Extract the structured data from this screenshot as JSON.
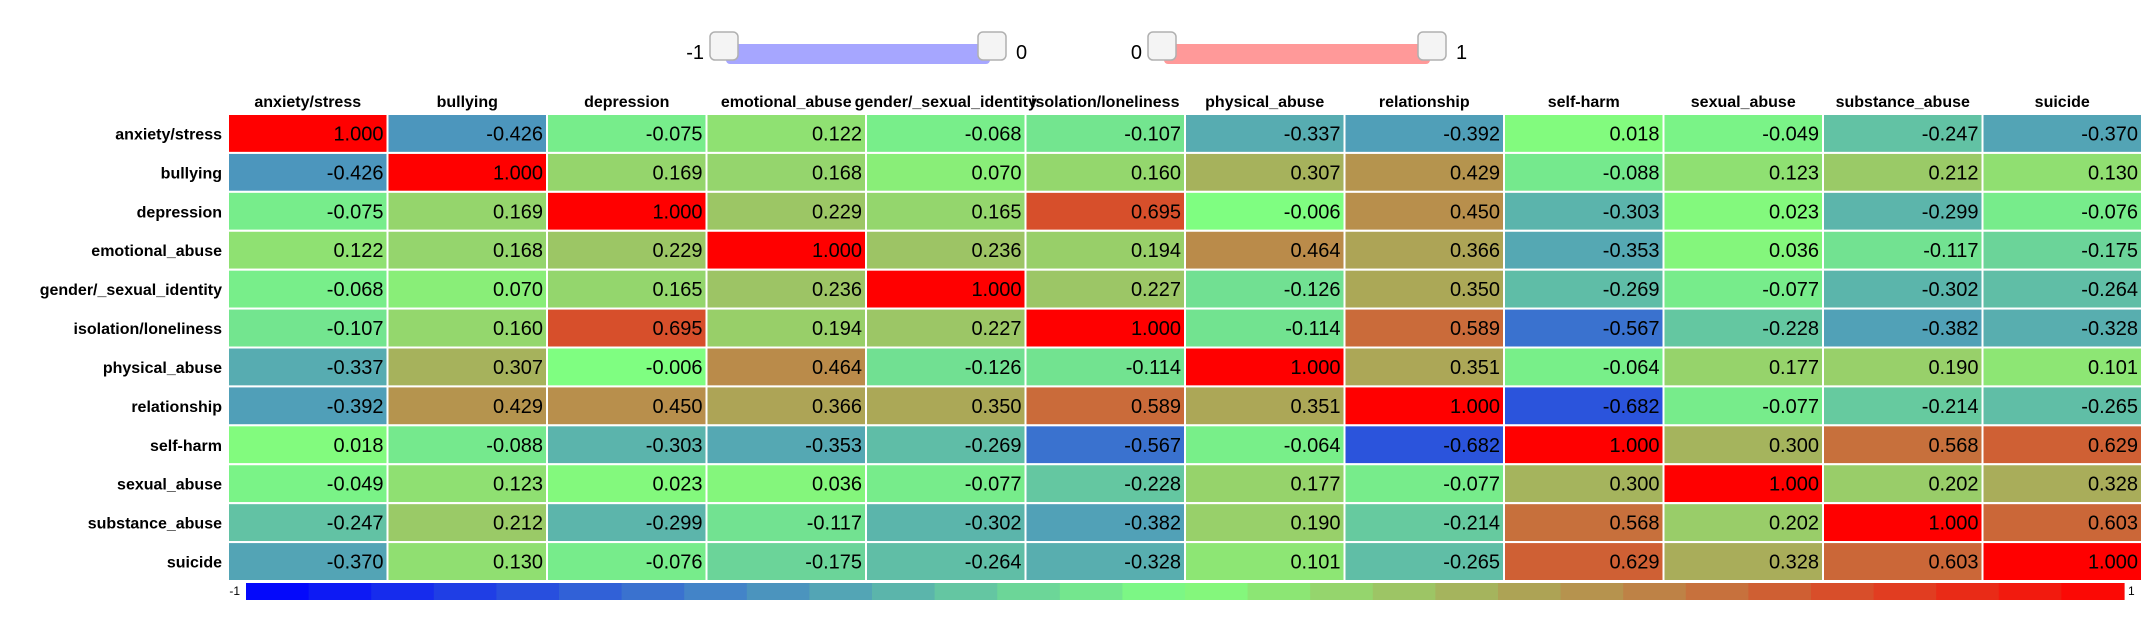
{
  "controls": {
    "negative_range": {
      "min_label": "-1",
      "max_label": "0",
      "track_color": "#a6a6ff"
    },
    "positive_range": {
      "min_label": "0",
      "max_label": "1",
      "track_color": "#ff9999"
    }
  },
  "chart_data": {
    "type": "heatmap",
    "title": "",
    "xlabel": "",
    "ylabel": "",
    "value_range": [
      -1,
      1
    ],
    "x_labels": [
      "anxiety/stress",
      "bullying",
      "depression",
      "emotional_abuse",
      "gender/_sexual_identity",
      "isolation/loneliness",
      "physical_abuse",
      "relationship",
      "self-harm",
      "sexual_abuse",
      "substance_abuse",
      "suicide"
    ],
    "y_labels": [
      "anxiety/stress",
      "bullying",
      "depression",
      "emotional_abuse",
      "gender/_sexual_identity",
      "isolation/loneliness",
      "physical_abuse",
      "relationship",
      "self-harm",
      "sexual_abuse",
      "substance_abuse",
      "suicide"
    ],
    "cell_labels": [
      [
        "1.000",
        "-0.426",
        "-0.075",
        "0.122",
        "-0.068",
        "-0.107",
        "-0.337",
        "-0.392",
        "0.018",
        "-0.049",
        "-0.247",
        "-0.370"
      ],
      [
        "-0.426",
        "1.000",
        "0.169",
        "0.168",
        "0.070",
        "0.160",
        "0.307",
        "0.429",
        "-0.088",
        "0.123",
        "0.212",
        "0.130"
      ],
      [
        "-0.075",
        "0.169",
        "1.000",
        "0.229",
        "0.165",
        "0.695",
        "-0.006",
        "0.450",
        "-0.303",
        "0.023",
        "-0.299",
        "-0.076"
      ],
      [
        "0.122",
        "0.168",
        "0.229",
        "1.000",
        "0.236",
        "0.194",
        "0.464",
        "0.366",
        "-0.353",
        "0.036",
        "-0.117",
        "-0.175"
      ],
      [
        "-0.068",
        "0.070",
        "0.165",
        "0.236",
        "1.000",
        "0.227",
        "-0.126",
        "0.350",
        "-0.269",
        "-0.077",
        "-0.302",
        "-0.264"
      ],
      [
        "-0.107",
        "0.160",
        "0.695",
        "0.194",
        "0.227",
        "1.000",
        "-0.114",
        "0.589",
        "-0.567",
        "-0.228",
        "-0.382",
        "-0.328"
      ],
      [
        "-0.337",
        "0.307",
        "-0.006",
        "0.464",
        "-0.126",
        "-0.114",
        "1.000",
        "0.351",
        "-0.064",
        "0.177",
        "0.190",
        "0.101"
      ],
      [
        "-0.392",
        "0.429",
        "0.450",
        "0.366",
        "0.350",
        "0.589",
        "0.351",
        "1.000",
        "-0.682",
        "-0.077",
        "-0.214",
        "-0.265"
      ],
      [
        "0.018",
        "-0.088",
        "-0.303",
        "-0.353",
        "-0.269",
        "-0.567",
        "-0.064",
        "-0.682",
        "1.000",
        "0.300",
        "0.568",
        "0.629"
      ],
      [
        "-0.049",
        "0.123",
        "0.023",
        "0.036",
        "-0.077",
        "-0.228",
        "0.177",
        "-0.077",
        "0.300",
        "1.000",
        "0.202",
        "0.328"
      ],
      [
        "-0.247",
        "0.212",
        "-0.299",
        "-0.117",
        "-0.302",
        "-0.382",
        "0.190",
        "-0.214",
        "0.568",
        "0.202",
        "1.000",
        "0.603"
      ],
      [
        "-0.370",
        "0.130",
        "-0.076",
        "-0.175",
        "-0.264",
        "-0.328",
        "0.101",
        "-0.265",
        "0.629",
        "0.328",
        "0.603",
        "1.000"
      ]
    ],
    "colorbar": {
      "min_label": "-1",
      "max_label": "1",
      "colors": [
        "#0000ff",
        "#80ff80",
        "#ff0000"
      ]
    }
  }
}
